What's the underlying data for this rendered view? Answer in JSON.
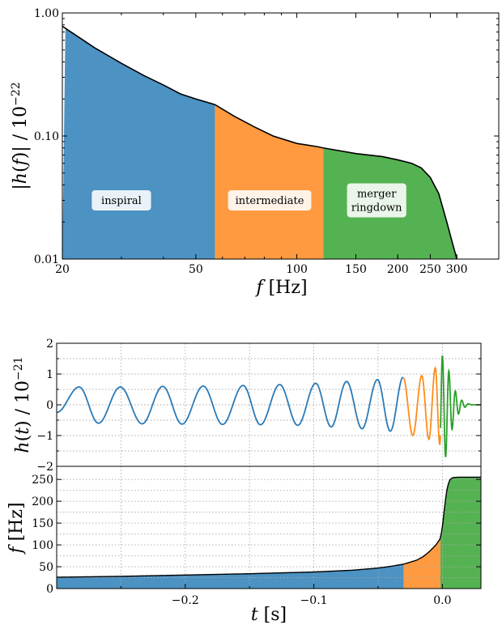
{
  "colors": {
    "inspiral": "#4c92c3",
    "intermediate": "#ff9a40",
    "merger": "#55b252",
    "line_inspiral": "#2a7ab8",
    "line_intermediate": "#ff8c1a",
    "line_merger": "#2ca02c",
    "grid": "#aaaaaa"
  },
  "chart_data": [
    {
      "id": "amplitude",
      "type": "area",
      "x_scale": "log",
      "y_scale": "log",
      "xlim": [
        20,
        400
      ],
      "ylim": [
        0.01,
        1.0
      ],
      "xlabel": "f [Hz]",
      "ylabel": "|h(f)| / 10^-22",
      "x_ticks": [
        "20",
        "50",
        "100",
        "150",
        "200",
        "250",
        "300"
      ],
      "y_ticks": [
        "0.01",
        "0.10",
        "1.00"
      ],
      "curve": [
        {
          "f": 20,
          "h": 0.78
        },
        {
          "f": 25,
          "h": 0.52
        },
        {
          "f": 30,
          "h": 0.39
        },
        {
          "f": 35,
          "h": 0.31
        },
        {
          "f": 40,
          "h": 0.26
        },
        {
          "f": 45,
          "h": 0.22
        },
        {
          "f": 50,
          "h": 0.2
        },
        {
          "f": 57,
          "h": 0.18
        },
        {
          "f": 65,
          "h": 0.145
        },
        {
          "f": 75,
          "h": 0.118
        },
        {
          "f": 85,
          "h": 0.1
        },
        {
          "f": 100,
          "h": 0.087
        },
        {
          "f": 115,
          "h": 0.082
        },
        {
          "f": 120,
          "h": 0.08
        },
        {
          "f": 150,
          "h": 0.072
        },
        {
          "f": 180,
          "h": 0.068
        },
        {
          "f": 200,
          "h": 0.064
        },
        {
          "f": 220,
          "h": 0.06
        },
        {
          "f": 235,
          "h": 0.055
        },
        {
          "f": 250,
          "h": 0.046
        },
        {
          "f": 265,
          "h": 0.034
        },
        {
          "f": 280,
          "h": 0.02
        },
        {
          "f": 290,
          "h": 0.014
        },
        {
          "f": 300,
          "h": 0.01
        }
      ],
      "regions": [
        {
          "name": "inspiral",
          "label": "inspiral",
          "f_start": 20,
          "f_end": 57
        },
        {
          "name": "intermediate",
          "label": "intermediate",
          "f_start": 57,
          "f_end": 120
        },
        {
          "name": "merger",
          "label": "merger ringdown",
          "f_start": 120,
          "f_end": 300
        }
      ],
      "annotations": [
        {
          "label_lines": [
            "inspiral"
          ],
          "f": 30,
          "h": 0.03
        },
        {
          "label_lines": [
            "intermediate"
          ],
          "f": 83,
          "h": 0.03
        },
        {
          "label_lines": [
            "merger",
            "ringdown"
          ],
          "f": 173,
          "h": 0.03
        }
      ]
    },
    {
      "id": "strain",
      "type": "line",
      "xlim": [
        -0.3,
        0.03
      ],
      "ylim": [
        -2,
        2
      ],
      "ylabel": "h(t) / 10^-21",
      "y_ticks": [
        "2",
        "1",
        "0",
        "−1",
        "−2"
      ],
      "segments": [
        {
          "name": "inspiral",
          "t_start": -0.3,
          "t_end": -0.03
        },
        {
          "name": "intermediate",
          "t_start": -0.03,
          "t_end": -0.0015
        },
        {
          "name": "merger",
          "t_start": -0.0015,
          "t_end": 0.03
        }
      ],
      "peaks": [
        {
          "t": -0.2825,
          "h": 0.58
        },
        {
          "t": -0.2675,
          "h": -0.6
        },
        {
          "t": -0.2505,
          "h": 0.58
        },
        {
          "t": -0.2335,
          "h": -0.62
        },
        {
          "t": -0.2175,
          "h": 0.6
        },
        {
          "t": -0.2025,
          "h": -0.63
        },
        {
          "t": -0.186,
          "h": 0.61
        },
        {
          "t": -0.171,
          "h": -0.64
        },
        {
          "t": -0.155,
          "h": 0.63
        },
        {
          "t": -0.1415,
          "h": -0.65
        },
        {
          "t": -0.1265,
          "h": 0.66
        },
        {
          "t": -0.1125,
          "h": -0.67
        },
        {
          "t": -0.0985,
          "h": 0.7
        },
        {
          "t": -0.0865,
          "h": -0.72
        },
        {
          "t": -0.0745,
          "h": 0.76
        },
        {
          "t": -0.0625,
          "h": -0.78
        },
        {
          "t": -0.0505,
          "h": 0.82
        },
        {
          "t": -0.0405,
          "h": -0.86
        },
        {
          "t": -0.0305,
          "h": 0.9
        },
        {
          "t": -0.023,
          "h": -1.0
        },
        {
          "t": -0.016,
          "h": 0.95
        },
        {
          "t": -0.0105,
          "h": -1.12
        },
        {
          "t": -0.0055,
          "h": 1.2
        },
        {
          "t": -0.002,
          "h": -1.3
        },
        {
          "t": 0.0,
          "h": 1.6
        },
        {
          "t": 0.0025,
          "h": -1.7
        },
        {
          "t": 0.005,
          "h": 1.1
        },
        {
          "t": 0.0075,
          "h": -0.8
        },
        {
          "t": 0.01,
          "h": 0.45
        },
        {
          "t": 0.0125,
          "h": -0.3
        },
        {
          "t": 0.015,
          "h": 0.15
        },
        {
          "t": 0.0175,
          "h": -0.08
        },
        {
          "t": 0.02,
          "h": 0.03
        },
        {
          "t": 0.023,
          "h": 0.0
        },
        {
          "t": 0.03,
          "h": 0.0
        }
      ]
    },
    {
      "id": "frequency",
      "type": "area",
      "xlim": [
        -0.3,
        0.03
      ],
      "ylim": [
        0,
        280
      ],
      "xlabel": "t [s]",
      "ylabel": "f [Hz]",
      "x_ticks": [
        "−0.2",
        "−0.1",
        "0.0"
      ],
      "y_ticks": [
        "0",
        "50",
        "100",
        "150",
        "200",
        "250"
      ],
      "curve": [
        {
          "t": -0.3,
          "f": 26
        },
        {
          "t": -0.25,
          "f": 28
        },
        {
          "t": -0.2,
          "f": 31
        },
        {
          "t": -0.15,
          "f": 34
        },
        {
          "t": -0.1,
          "f": 38
        },
        {
          "t": -0.07,
          "f": 42
        },
        {
          "t": -0.05,
          "f": 47
        },
        {
          "t": -0.04,
          "f": 51
        },
        {
          "t": -0.03,
          "f": 56
        },
        {
          "t": -0.02,
          "f": 65
        },
        {
          "t": -0.015,
          "f": 73
        },
        {
          "t": -0.01,
          "f": 85
        },
        {
          "t": -0.005,
          "f": 100
        },
        {
          "t": -0.0015,
          "f": 115
        },
        {
          "t": 0.0,
          "f": 140
        },
        {
          "t": 0.002,
          "f": 195
        },
        {
          "t": 0.004,
          "f": 235
        },
        {
          "t": 0.006,
          "f": 250
        },
        {
          "t": 0.008,
          "f": 254
        },
        {
          "t": 0.012,
          "f": 255
        },
        {
          "t": 0.03,
          "f": 255
        }
      ],
      "regions": [
        {
          "name": "inspiral",
          "t_start": -0.3,
          "t_end": -0.03
        },
        {
          "name": "intermediate",
          "t_start": -0.03,
          "t_end": -0.0015
        },
        {
          "name": "merger",
          "t_start": -0.0015,
          "t_end": 0.03
        }
      ]
    }
  ]
}
